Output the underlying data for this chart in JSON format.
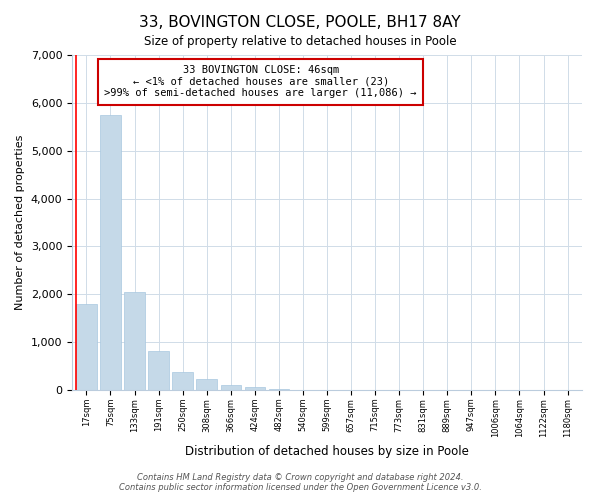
{
  "title": "33, BOVINGTON CLOSE, POOLE, BH17 8AY",
  "subtitle": "Size of property relative to detached houses in Poole",
  "xlabel": "Distribution of detached houses by size in Poole",
  "ylabel": "Number of detached properties",
  "bar_color": "#c5d9e8",
  "bar_edge_color": "#a8c8e0",
  "categories": [
    "17sqm",
    "75sqm",
    "133sqm",
    "191sqm",
    "250sqm",
    "308sqm",
    "366sqm",
    "424sqm",
    "482sqm",
    "540sqm",
    "599sqm",
    "657sqm",
    "715sqm",
    "773sqm",
    "831sqm",
    "889sqm",
    "947sqm",
    "1006sqm",
    "1064sqm",
    "1122sqm",
    "1180sqm"
  ],
  "values": [
    1800,
    5750,
    2050,
    820,
    370,
    235,
    105,
    55,
    30,
    10,
    5,
    2,
    1,
    0,
    0,
    0,
    0,
    0,
    0,
    0,
    0
  ],
  "ylim": [
    0,
    7000
  ],
  "yticks": [
    0,
    1000,
    2000,
    3000,
    4000,
    5000,
    6000,
    7000
  ],
  "annotation_title": "33 BOVINGTON CLOSE: 46sqm",
  "annotation_line1": "← <1% of detached houses are smaller (23)",
  "annotation_line2": ">99% of semi-detached houses are larger (11,086) →",
  "annotation_box_color": "#ffffff",
  "annotation_box_edge": "#cc0000",
  "footer1": "Contains HM Land Registry data © Crown copyright and database right 2024.",
  "footer2": "Contains public sector information licensed under the Open Government Licence v3.0.",
  "background_color": "#ffffff",
  "grid_color": "#d0dce8"
}
